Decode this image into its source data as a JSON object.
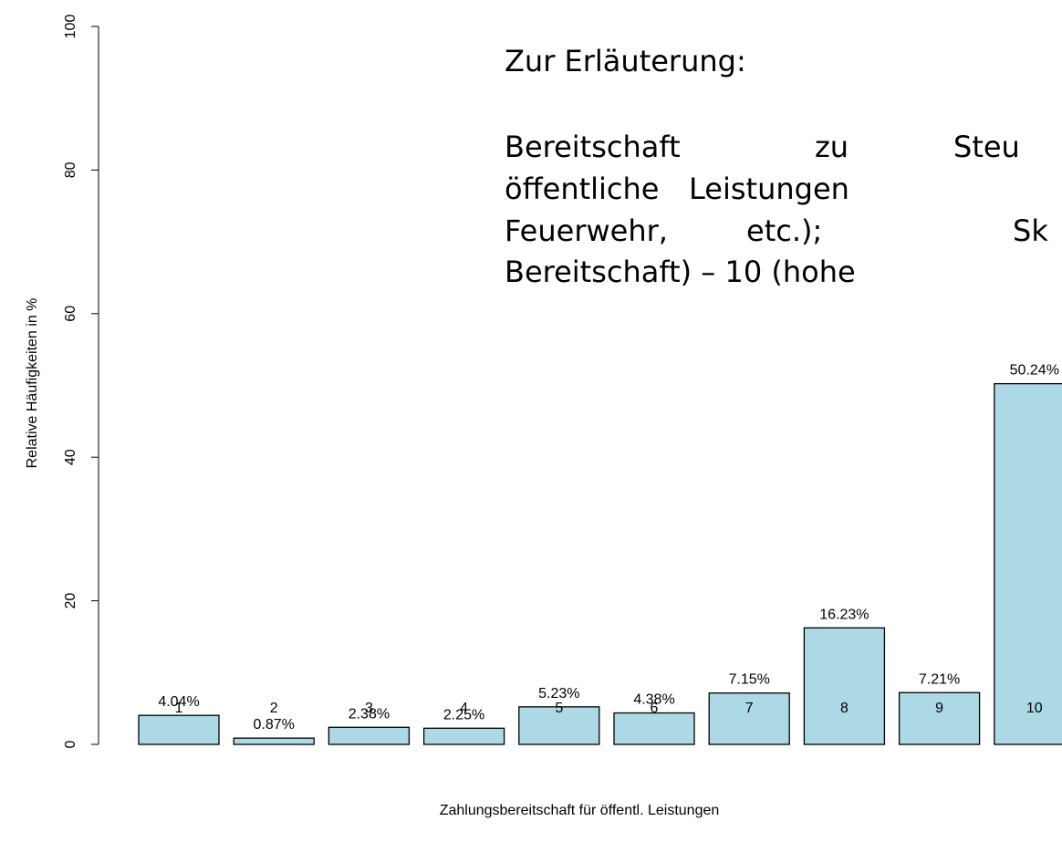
{
  "chart_data": {
    "type": "bar",
    "x_label": "Zahlungsbereitschaft für öffentl. Leistungen",
    "y_label": "Relative Häufigkeiten in %",
    "annotation_title": "Zur Erläuterung:",
    "annotation_lines": [
      "Bereitschaft zu Steu",
      "öffentliche Leistungen",
      "Feuerwehr, etc.); Sk",
      "Bereitschaft) – 10 (hohe"
    ],
    "categories": [
      "1",
      "2",
      "3",
      "4",
      "5",
      "6",
      "7",
      "8",
      "9",
      "10"
    ],
    "values": [
      4.04,
      0.87,
      2.38,
      2.25,
      5.23,
      4.38,
      7.15,
      16.23,
      7.21,
      50.24
    ],
    "value_labels": [
      "4.04%",
      "0.87%",
      "2.38%",
      "2.25%",
      "5.23%",
      "4.38%",
      "7.15%",
      "16.23%",
      "7.21%",
      "50.24%"
    ],
    "color": "#add8e6",
    "ylim": [
      0,
      100
    ],
    "yticks": [
      0,
      20,
      40,
      60,
      80,
      100
    ]
  }
}
